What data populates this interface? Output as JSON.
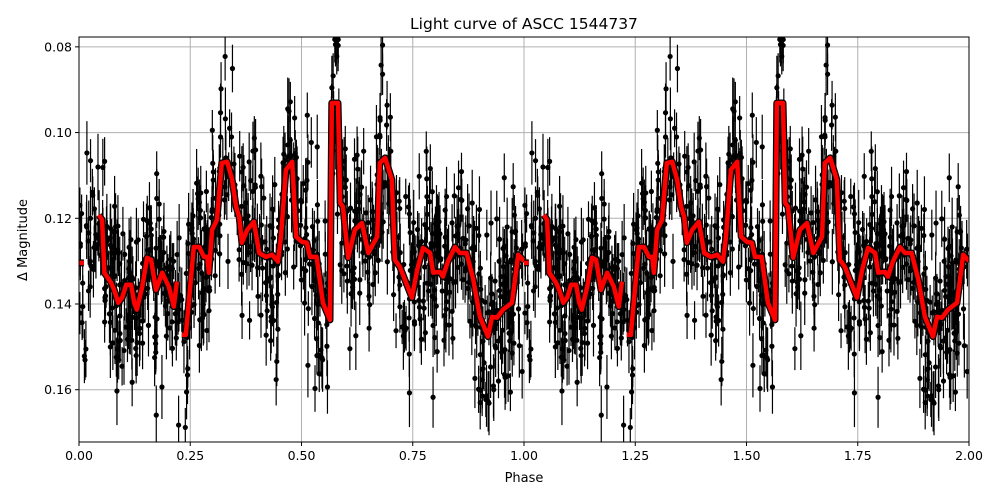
{
  "chart_data": {
    "type": "scatter",
    "title": "Light curve of ASCC 1544737",
    "xlabel": "Phase",
    "ylabel": "Δ Magnitude",
    "xlim": [
      0.0,
      2.0
    ],
    "ylim": [
      0.1722,
      0.0777
    ],
    "y_inverted": true,
    "grid": true,
    "xticks": [
      "0.00",
      "0.25",
      "0.50",
      "0.75",
      "1.00",
      "1.25",
      "1.50",
      "1.75",
      "2.00"
    ],
    "yticks": [
      "0.08",
      "0.10",
      "0.12",
      "0.14",
      "0.16"
    ],
    "colors": {
      "points": "#000000",
      "model": "#ff0000",
      "model_edge": "#000000",
      "grid": "#b0b0b0"
    },
    "model_repeats_every_phase": 1.0,
    "model_segments": [
      [
        [
          0.0,
          0.1304
        ],
        [
          0.011,
          0.1304
        ]
      ],
      [
        [
          0.045,
          0.1192
        ],
        [
          0.052,
          0.1204
        ],
        [
          0.057,
          0.1327
        ],
        [
          0.072,
          0.135
        ],
        [
          0.079,
          0.1367
        ],
        [
          0.088,
          0.1397
        ],
        [
          0.097,
          0.1385
        ],
        [
          0.106,
          0.1355
        ],
        [
          0.117,
          0.1355
        ],
        [
          0.124,
          0.1397
        ],
        [
          0.13,
          0.1413
        ],
        [
          0.142,
          0.136
        ],
        [
          0.153,
          0.1292
        ],
        [
          0.162,
          0.1297
        ],
        [
          0.173,
          0.1367
        ],
        [
          0.187,
          0.1327
        ],
        [
          0.202,
          0.136
        ],
        [
          0.213,
          0.1406
        ],
        [
          0.22,
          0.1348
        ]
      ],
      [
        [
          0.231,
          0.1472
        ],
        [
          0.24,
          0.1472
        ],
        [
          0.258,
          0.1267
        ],
        [
          0.27,
          0.1267
        ],
        [
          0.281,
          0.129
        ],
        [
          0.288,
          0.129
        ],
        [
          0.292,
          0.1327
        ],
        [
          0.299,
          0.1227
        ],
        [
          0.31,
          0.1204
        ],
        [
          0.321,
          0.1071
        ],
        [
          0.333,
          0.1068
        ],
        [
          0.344,
          0.111
        ],
        [
          0.353,
          0.1173
        ],
        [
          0.36,
          0.1197
        ],
        [
          0.366,
          0.1257
        ],
        [
          0.378,
          0.1227
        ],
        [
          0.393,
          0.1208
        ],
        [
          0.405,
          0.1281
        ],
        [
          0.42,
          0.129
        ],
        [
          0.434,
          0.1285
        ],
        [
          0.447,
          0.1301
        ],
        [
          0.454,
          0.1243
        ],
        [
          0.465,
          0.1087
        ],
        [
          0.479,
          0.1068
        ],
        [
          0.488,
          0.1243
        ],
        [
          0.501,
          0.1255
        ],
        [
          0.512,
          0.1257
        ],
        [
          0.519,
          0.129
        ],
        [
          0.534,
          0.129
        ],
        [
          0.548,
          0.1397
        ],
        [
          0.564,
          0.1437
        ],
        [
          0.568,
          0.0931
        ],
        [
          0.582,
          0.0931
        ],
        [
          0.587,
          0.1164
        ],
        [
          0.593,
          0.1173
        ],
        [
          0.605,
          0.1292
        ],
        [
          0.62,
          0.1227
        ],
        [
          0.636,
          0.1211
        ],
        [
          0.65,
          0.1281
        ],
        [
          0.67,
          0.1243
        ],
        [
          0.676,
          0.1071
        ],
        [
          0.688,
          0.1059
        ],
        [
          0.703,
          0.111
        ],
        [
          0.71,
          0.1297
        ],
        [
          0.721,
          0.1313
        ],
        [
          0.748,
          0.1385
        ],
        [
          0.76,
          0.132
        ],
        [
          0.773,
          0.1269
        ],
        [
          0.789,
          0.1281
        ],
        [
          0.796,
          0.1327
        ],
        [
          0.811,
          0.1325
        ],
        [
          0.818,
          0.1336
        ],
        [
          0.829,
          0.1301
        ],
        [
          0.845,
          0.1267
        ],
        [
          0.856,
          0.1281
        ],
        [
          0.871,
          0.1281
        ],
        [
          0.886,
          0.1343
        ],
        [
          0.901,
          0.143
        ],
        [
          0.919,
          0.1476
        ],
        [
          0.928,
          0.143
        ],
        [
          0.939,
          0.1432
        ],
        [
          0.953,
          0.1413
        ],
        [
          0.973,
          0.1397
        ],
        [
          0.987,
          0.1285
        ],
        [
          1.0,
          0.13
        ]
      ]
    ]
  }
}
